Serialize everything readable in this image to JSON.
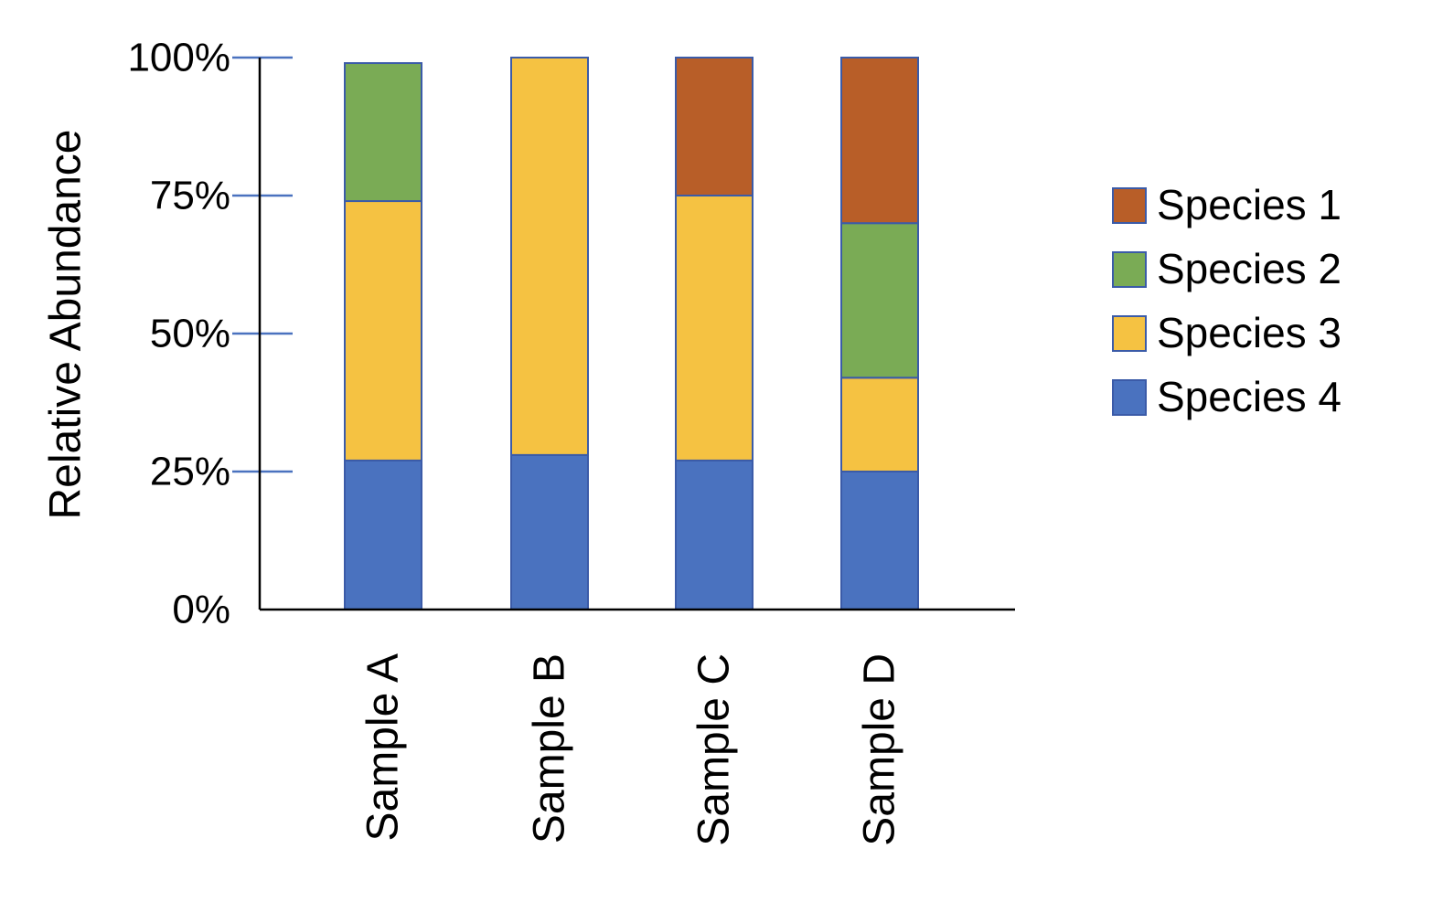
{
  "chart_data": {
    "type": "bar",
    "stacked": true,
    "title": "",
    "xlabel": "",
    "ylabel": "Relative Abundance",
    "ylim": [
      0,
      100
    ],
    "y_ticks": [
      {
        "value": 0,
        "label": "0%"
      },
      {
        "value": 25,
        "label": "25%"
      },
      {
        "value": 50,
        "label": "50%"
      },
      {
        "value": 75,
        "label": "75%"
      },
      {
        "value": 100,
        "label": "100%"
      }
    ],
    "categories": [
      "Sample A",
      "Sample B",
      "Sample C",
      "Sample D"
    ],
    "series": [
      {
        "name": "Species 4",
        "color": "#4a72bf",
        "values": [
          27,
          28,
          27,
          25
        ]
      },
      {
        "name": "Species 3",
        "color": "#f5c242",
        "values": [
          47,
          72,
          48,
          17
        ]
      },
      {
        "name": "Species 2",
        "color": "#7aab55",
        "values": [
          25,
          0,
          0,
          28
        ]
      },
      {
        "name": "Species 1",
        "color": "#b85e28",
        "values": [
          0,
          0,
          25,
          30
        ]
      }
    ],
    "legend": {
      "placement": "right",
      "entries": [
        "Species 1",
        "Species 2",
        "Species 3",
        "Species 4"
      ]
    },
    "grid": false,
    "bar_outline_color": "#3b5ba8",
    "tick_mark_color": "#4a72bf"
  }
}
